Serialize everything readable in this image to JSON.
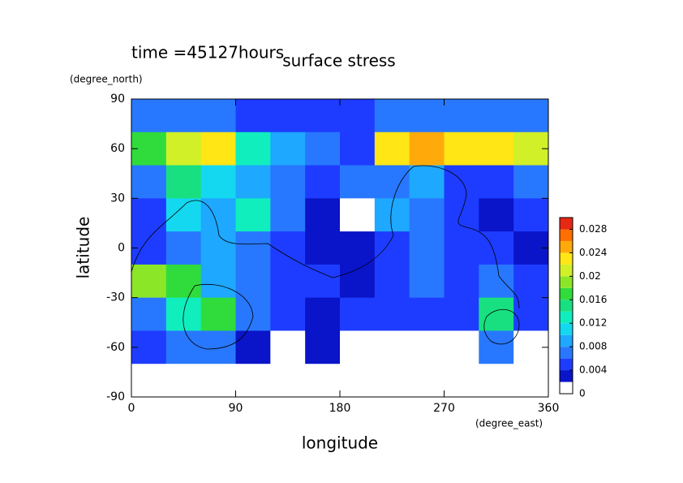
{
  "chart_data": {
    "type": "contour",
    "title": "surface stress",
    "annotation": "time =45127hours",
    "ylabel_units": "(degree_north)",
    "xlabel_units": "(degree_east)",
    "xlabel": "longitude",
    "ylabel": "latitude",
    "xlim": [
      0,
      360
    ],
    "xticks": [
      0,
      90,
      180,
      270,
      360
    ],
    "ylim": [
      -90,
      90
    ],
    "yticks": [
      -90,
      -60,
      -30,
      0,
      30,
      60,
      90
    ],
    "x": [
      15,
      45,
      75,
      105,
      135,
      165,
      195,
      225,
      255,
      285,
      315,
      345
    ],
    "y": [
      80,
      60,
      40,
      20,
      0,
      -20,
      -40,
      -60,
      -80
    ],
    "z": [
      [
        0.006,
        0.006,
        0.006,
        0.004,
        0.004,
        0.004,
        0.004,
        0.006,
        0.006,
        0.006,
        0.006,
        0.006
      ],
      [
        0.016,
        0.02,
        0.022,
        0.012,
        0.008,
        0.006,
        0.004,
        0.022,
        0.024,
        0.022,
        0.022,
        0.02
      ],
      [
        0.006,
        0.014,
        0.01,
        0.008,
        0.006,
        0.004,
        0.006,
        0.006,
        0.008,
        0.004,
        0.004,
        0.006
      ],
      [
        0.004,
        0.01,
        0.008,
        0.012,
        0.006,
        0.002,
        0,
        0.008,
        0.006,
        0.004,
        0.002,
        0.004
      ],
      [
        0.004,
        0.006,
        0.008,
        0.006,
        0.004,
        0.002,
        0.002,
        0.004,
        0.006,
        0.004,
        0.004,
        0.002
      ],
      [
        0.018,
        0.016,
        0.008,
        0.006,
        0.004,
        0.004,
        0.002,
        0.004,
        0.006,
        0.004,
        0.006,
        0.004
      ],
      [
        0.006,
        0.012,
        0.016,
        0.006,
        0.004,
        0.002,
        0.004,
        0.004,
        0.004,
        0.004,
        0.014,
        0.004
      ],
      [
        0.004,
        0.006,
        0.006,
        0.002,
        0,
        0.002,
        0,
        0,
        0,
        0,
        0.006,
        0
      ],
      [
        0,
        0,
        0,
        0,
        0,
        0,
        0,
        0,
        0,
        0,
        0,
        0
      ]
    ],
    "levels": [
      0,
      0.002,
      0.004,
      0.006,
      0.008,
      0.01,
      0.012,
      0.014,
      0.016,
      0.018,
      0.02,
      0.022,
      0.024,
      0.026,
      0.028
    ],
    "colors": [
      "#ffffff",
      "#0a14c8",
      "#1e3cff",
      "#2878ff",
      "#1ea8ff",
      "#14d8f0",
      "#10eebe",
      "#18e080",
      "#30dc3c",
      "#8ce628",
      "#d2f028",
      "#ffe614",
      "#ffaa0a",
      "#ff6e00",
      "#e62814"
    ],
    "colorbar_ticks": [
      0,
      0.004,
      0.008,
      0.012,
      0.016,
      0.02,
      0.024,
      0.028
    ]
  }
}
